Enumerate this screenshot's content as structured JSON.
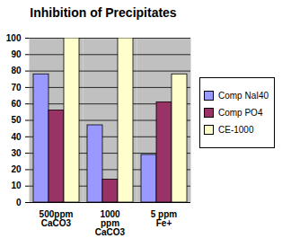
{
  "chart_data": {
    "type": "bar",
    "title": "Inhibition of Precipitates",
    "categories": [
      "500ppm CaCO3",
      "1000 ppm CaCO3",
      "5 ppm Fe+"
    ],
    "series": [
      {
        "name": "Comp NaI40",
        "color": "#9999ff",
        "values": [
          78,
          47,
          29
        ]
      },
      {
        "name": "Comp PO4",
        "color": "#993366",
        "values": [
          56,
          14,
          61
        ]
      },
      {
        "name": "CE-1000",
        "color": "#ffffcc",
        "values": [
          100,
          100,
          78
        ]
      }
    ],
    "ylim": [
      0,
      100
    ],
    "yticks": [
      0,
      10,
      20,
      30,
      40,
      50,
      60,
      70,
      80,
      90,
      100
    ],
    "grid": true,
    "legend": "right"
  }
}
